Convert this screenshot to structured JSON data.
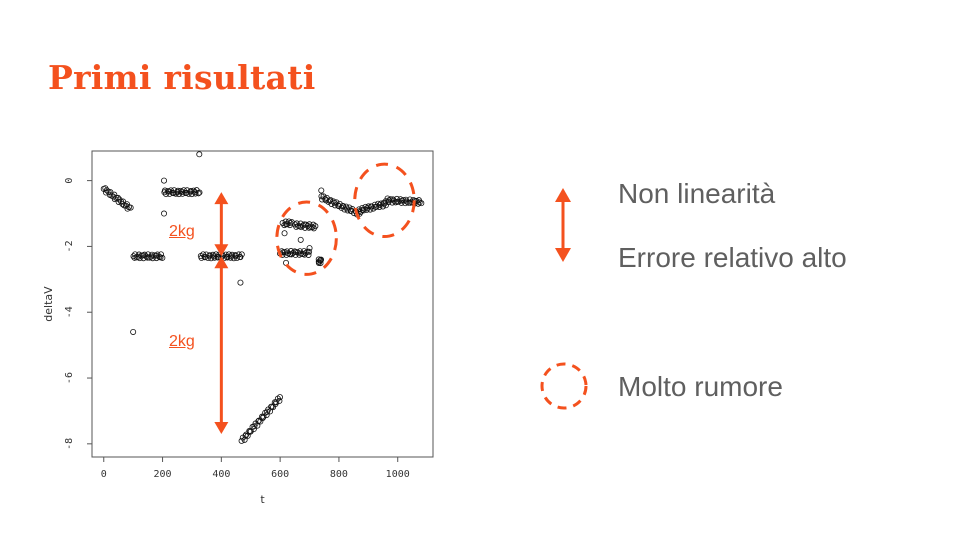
{
  "slide": {
    "title": "Primi risultati",
    "accent_color": "#f4511e",
    "text_color": "#5f5f5f"
  },
  "annotations": {
    "upper": "2kg",
    "lower": "2kg"
  },
  "legend": {
    "arrow_label_1": "Non linearità",
    "arrow_label_2": "Errore relativo alto",
    "circle_label": "Molto rumore",
    "arrow_icon": "double-arrow-icon",
    "circle_icon": "dashed-circle-icon"
  },
  "chart_data": {
    "type": "scatter",
    "xlabel": "t",
    "ylabel": "deltaV",
    "xlim": [
      -40,
      1120
    ],
    "ylim": [
      -8.4,
      0.9
    ],
    "xticks": [
      0,
      200,
      400,
      600,
      800,
      1000
    ],
    "yticks": [
      0,
      -2,
      -4,
      -6,
      -8
    ],
    "marker": "open-circle",
    "segments": [
      {
        "x": [
          0,
          90
        ],
        "y": [
          -0.25,
          -0.85
        ]
      },
      {
        "x": [
          100,
          200
        ],
        "y": [
          -2.3,
          -2.3
        ]
      },
      {
        "x": [
          205,
          325
        ],
        "y": [
          -0.35,
          -0.35
        ]
      },
      {
        "x": [
          330,
          470
        ],
        "y": [
          -2.3,
          -2.3
        ]
      },
      {
        "x": [
          470,
          600
        ],
        "y": [
          -7.9,
          -6.6
        ]
      },
      {
        "x": [
          610,
          640
        ],
        "y": [
          -1.3,
          -1.3
        ]
      },
      {
        "x": [
          600,
          700
        ],
        "y": [
          -2.2,
          -2.2
        ]
      },
      {
        "x": [
          650,
          720
        ],
        "y": [
          -1.35,
          -1.4
        ]
      },
      {
        "x": [
          730,
          740
        ],
        "y": [
          -2.45,
          -2.45
        ]
      },
      {
        "x": [
          740,
          800
        ],
        "y": [
          -0.5,
          -0.75
        ]
      },
      {
        "x": [
          800,
          870
        ],
        "y": [
          -0.75,
          -1.0
        ]
      },
      {
        "x": [
          870,
          960
        ],
        "y": [
          -0.9,
          -0.7
        ]
      },
      {
        "x": [
          960,
          1080
        ],
        "y": [
          -0.6,
          -0.65
        ]
      }
    ],
    "outliers": [
      {
        "x": 100,
        "y": -4.6
      },
      {
        "x": 205,
        "y": 0.0
      },
      {
        "x": 205,
        "y": -1.0
      },
      {
        "x": 325,
        "y": 0.8
      },
      {
        "x": 465,
        "y": -3.1
      },
      {
        "x": 615,
        "y": -1.6
      },
      {
        "x": 620,
        "y": -2.5
      },
      {
        "x": 670,
        "y": -1.8
      },
      {
        "x": 700,
        "y": -2.05
      },
      {
        "x": 740,
        "y": -0.3
      }
    ],
    "annotation_arrows": [
      {
        "x": 400,
        "y_from": -0.35,
        "y_to": -2.3
      },
      {
        "x": 400,
        "y_from": -2.3,
        "y_to": -7.7
      }
    ],
    "noise_circles": [
      {
        "cx": 690,
        "cy": -1.75,
        "rx": 110,
        "ry": 1.0
      },
      {
        "cx": 955,
        "cy": -0.6,
        "rx": 110,
        "ry": 1.0
      }
    ],
    "grid": false,
    "legend_position": "none"
  }
}
